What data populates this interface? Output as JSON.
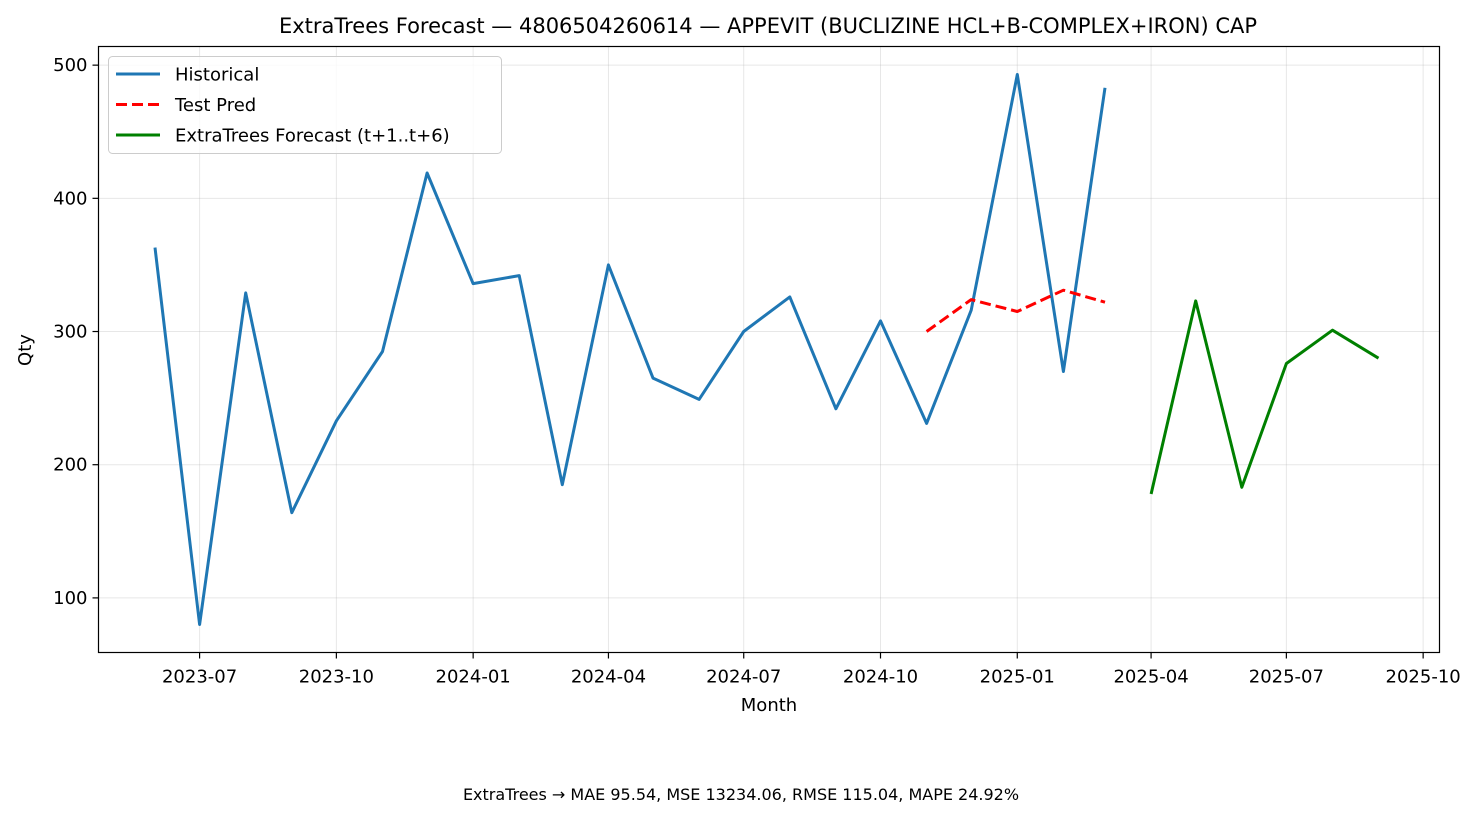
{
  "chart_data": {
    "type": "line",
    "title": "ExtraTrees Forecast — 4806504260614 — APPEVIT (BUCLIZINE HCL+B-COMPLEX+IRON) CAP",
    "xlabel": "Month",
    "ylabel": "Qty",
    "footer": "ExtraTrees → MAE 95.54, MSE 13234.06, RMSE 115.04, MAPE 24.92%",
    "x_range": [
      "2023-04-24",
      "2025-10-12"
    ],
    "ylim": [
      59,
      514
    ],
    "x_ticks": [
      "2023-07",
      "2023-10",
      "2024-01",
      "2024-04",
      "2024-07",
      "2024-10",
      "2025-01",
      "2025-04",
      "2025-07",
      "2025-10"
    ],
    "y_ticks": [
      100,
      200,
      300,
      400,
      500
    ],
    "grid": true,
    "legend_position": "upper-left",
    "series": [
      {
        "name": "Historical",
        "color": "#1f77b4",
        "style": "solid",
        "x": [
          "2023-06",
          "2023-07",
          "2023-08",
          "2023-09",
          "2023-10",
          "2023-11",
          "2023-12",
          "2024-01",
          "2024-02",
          "2024-03",
          "2024-04",
          "2024-05",
          "2024-06",
          "2024-07",
          "2024-08",
          "2024-09",
          "2024-10",
          "2024-11",
          "2024-12",
          "2025-01",
          "2025-02",
          "2025-03"
        ],
        "y": [
          363,
          80,
          329,
          164,
          233,
          285,
          419,
          336,
          342,
          185,
          350,
          265,
          249,
          300,
          326,
          242,
          308,
          231,
          316,
          493,
          270,
          483
        ]
      },
      {
        "name": "Test Pred",
        "color": "#ff0000",
        "style": "dashed",
        "x": [
          "2024-11",
          "2024-12",
          "2025-01",
          "2025-02",
          "2025-03"
        ],
        "y": [
          300,
          324,
          315,
          331,
          322
        ]
      },
      {
        "name": "ExtraTrees Forecast (t+1..t+6)",
        "color": "#008000",
        "style": "solid",
        "x": [
          "2025-04",
          "2025-05",
          "2025-06",
          "2025-07",
          "2025-08",
          "2025-09"
        ],
        "y": [
          178,
          323,
          183,
          276,
          301,
          280
        ]
      }
    ]
  }
}
